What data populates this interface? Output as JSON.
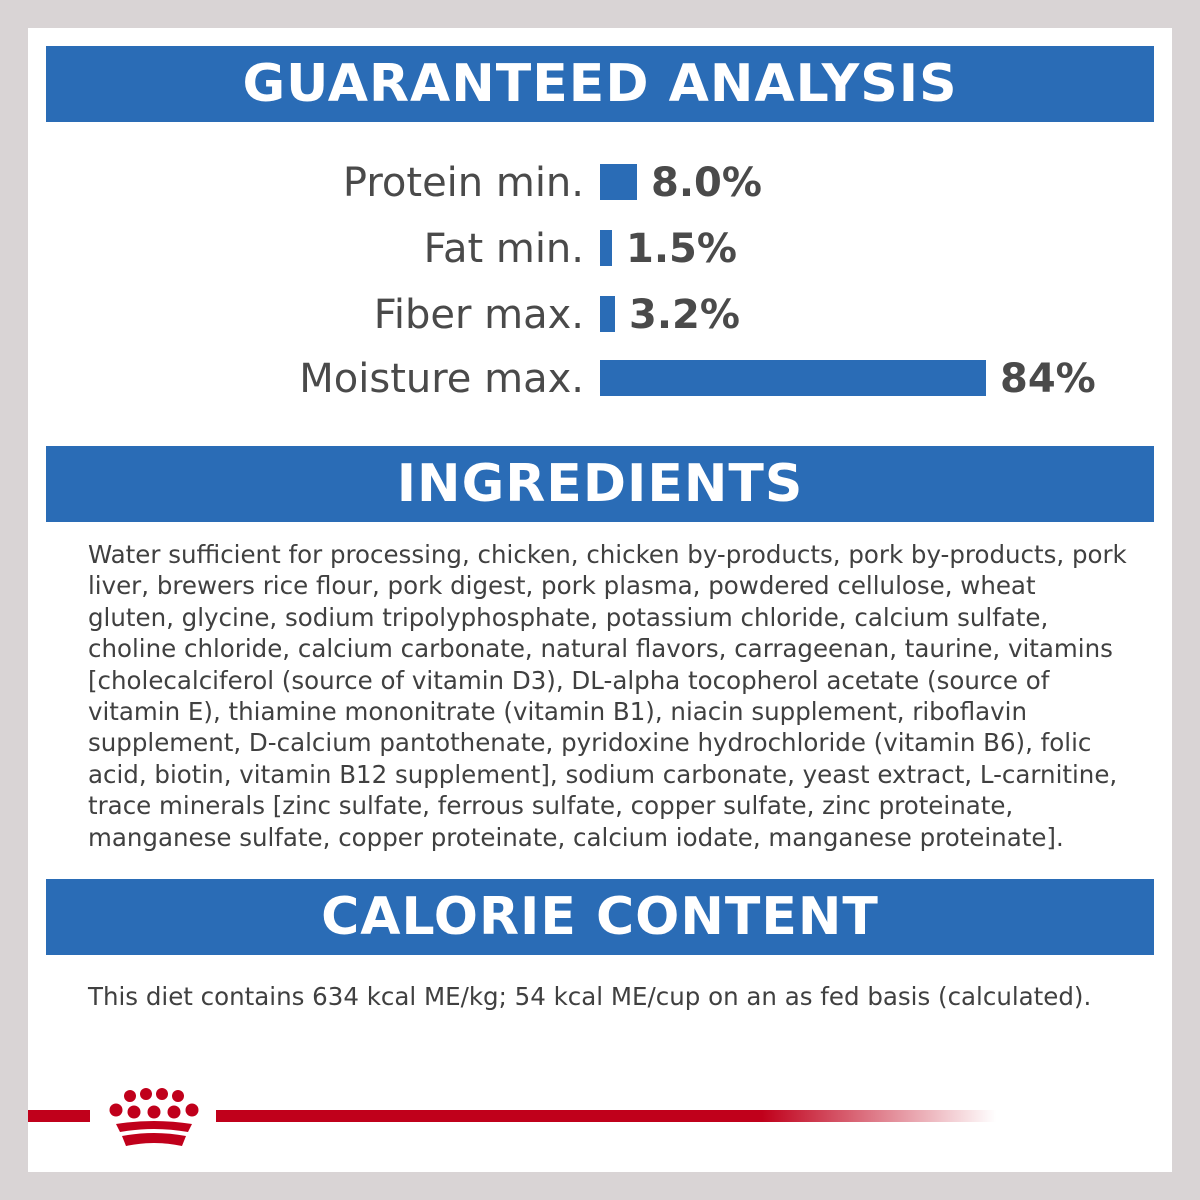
{
  "sections": {
    "analysis_title": "GUARANTEED ANALYSIS",
    "ingredients_title": "INGREDIENTS",
    "calorie_title": "CALORIE CONTENT"
  },
  "analysis": [
    {
      "label": "Protein min.",
      "value": "8.0%",
      "percent": 8.0
    },
    {
      "label": "Fat min.",
      "value": "1.5%",
      "percent": 1.5
    },
    {
      "label": "Fiber max.",
      "value": "3.2%",
      "percent": 3.2
    },
    {
      "label": "Moisture max.",
      "value": "84%",
      "percent": 84
    }
  ],
  "ingredients_text": "Water sufficient for processing, chicken, chicken by-products, pork by-products, pork liver, brewers rice flour, pork digest, pork plasma, powdered cellulose, wheat gluten, glycine, sodium tripolyphosphate, potassium chloride, calcium sulfate, choline chloride, calcium carbonate, natural flavors, carrageenan, taurine, vitamins [cholecalciferol (source of vitamin D3), DL-alpha tocopherol acetate (source of vitamin E), thiamine mononitrate (vitamin B1), niacin supplement, riboflavin supplement, D-calcium pantothenate, pyridoxine hydrochloride (vitamin B6), folic acid, biotin, vitamin B12 supplement], sodium carbonate, yeast extract, L-carnitine, trace minerals [zinc sulfate, ferrous sulfate, copper sulfate, zinc proteinate, manganese sulfate, copper proteinate, calcium iodate, manganese proteinate].",
  "calorie_text": "This diet contains 634 kcal ME/kg; 54 kcal ME/cup on an as fed basis (calculated).",
  "colors": {
    "banner": "#2a6cb6",
    "brand_red": "#c0001b",
    "text": "#4a4a4a",
    "frame": "#d9d4d5"
  },
  "logo": {
    "icon": "crown-icon"
  }
}
